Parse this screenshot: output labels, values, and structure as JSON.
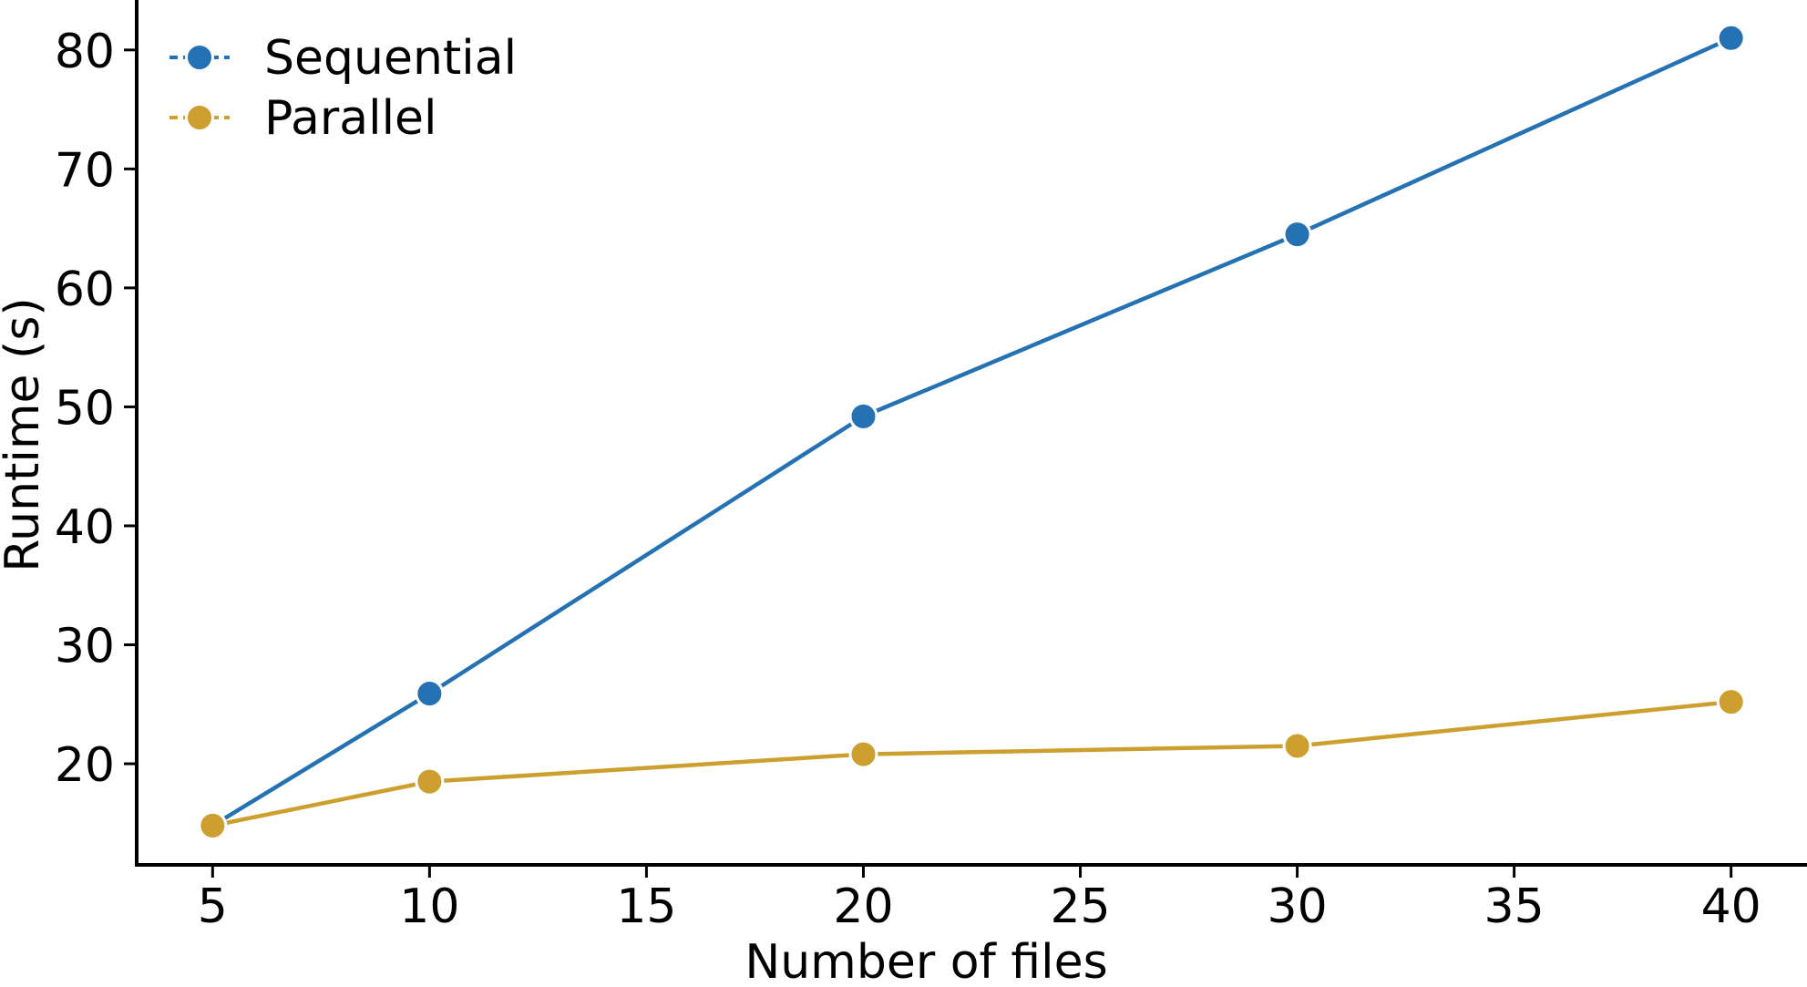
{
  "chart_data": {
    "type": "line",
    "xlabel": "Number of files",
    "ylabel": "Runtime (s)",
    "x_ticks": [
      5,
      10,
      15,
      20,
      25,
      30,
      35,
      40
    ],
    "y_ticks": [
      20,
      30,
      40,
      50,
      60,
      70,
      80
    ],
    "xlim": [
      3.25,
      41.75
    ],
    "ylim": [
      11.5,
      84.2
    ],
    "grid": false,
    "legend_position": "top-left",
    "x": [
      5,
      10,
      20,
      30,
      40
    ],
    "series": [
      {
        "name": "Sequential",
        "color": "#2471B4",
        "values": [
          14.8,
          25.9,
          49.2,
          64.5,
          81.0
        ]
      },
      {
        "name": "Parallel",
        "color": "#CC9F2E",
        "values": [
          14.8,
          18.5,
          20.8,
          21.5,
          25.2
        ]
      }
    ]
  }
}
